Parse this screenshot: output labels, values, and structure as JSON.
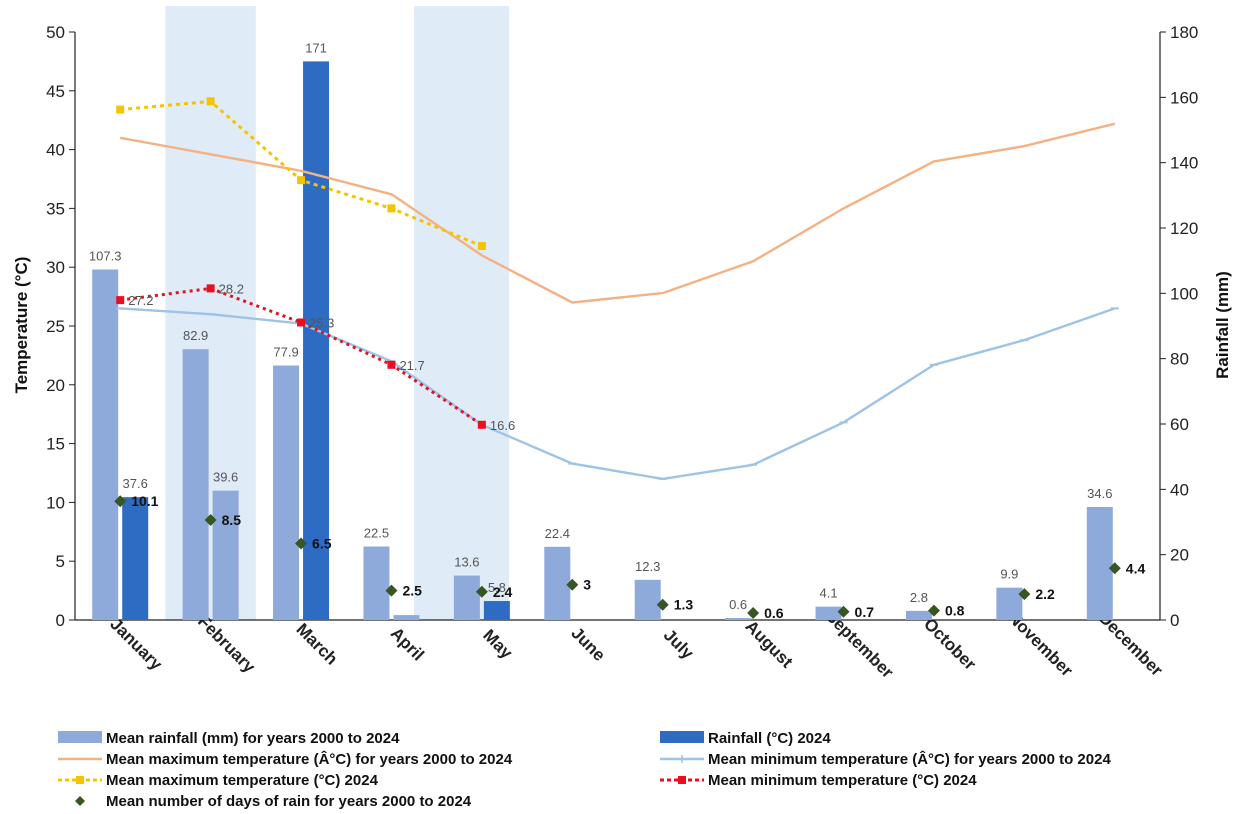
{
  "chart_data": {
    "type": "bar",
    "categories": [
      "January",
      "February",
      "March",
      "April",
      "May",
      "June",
      "July",
      "August",
      "September",
      "October",
      "November",
      "December"
    ],
    "y_left": {
      "label": "Temperature (°C)",
      "range": [
        0,
        50
      ],
      "ticks": [
        0,
        5,
        10,
        15,
        20,
        25,
        30,
        35,
        40,
        45,
        50
      ]
    },
    "y_right": {
      "label": "Rainfall (mm)",
      "range": [
        0,
        180
      ],
      "ticks": [
        0,
        20,
        40,
        60,
        80,
        100,
        120,
        140,
        160,
        180
      ]
    },
    "shaded_months": [
      "February",
      "April-May"
    ],
    "series": [
      {
        "name": "Mean rainfall (mm) for years 2000 to 2024",
        "type": "bar",
        "axis": "right",
        "color": "#8eaadb",
        "values": [
          107.3,
          82.9,
          77.9,
          22.5,
          13.6,
          22.4,
          12.3,
          0.6,
          4.1,
          2.8,
          9.9,
          34.6
        ],
        "labels": [
          "107.3",
          "82.9",
          "77.9",
          "22.5",
          "13.6",
          "22.4",
          "12.3",
          "0.6",
          "4.1",
          "2.8",
          "9.9",
          "34.6"
        ]
      },
      {
        "name": "Rainfall (°C) 2024",
        "type": "bar",
        "axis": "right",
        "color": "#2e6cc4",
        "values": [
          37.6,
          39.6,
          171,
          1.5,
          5.8,
          null,
          null,
          null,
          null,
          null,
          null,
          null
        ],
        "labels": [
          "37.6",
          "39.6",
          "171",
          "",
          "5.8",
          "",
          "",
          "",
          "",
          "",
          "",
          ""
        ]
      },
      {
        "name": "Mean maximum temperature (Â°C) for years 2000 to 2024",
        "type": "line",
        "axis": "left",
        "color": "#f4b183",
        "values": [
          41.0,
          39.6,
          38.2,
          36.2,
          31.0,
          27.0,
          27.8,
          30.5,
          35.0,
          39.0,
          40.3,
          42.2
        ]
      },
      {
        "name": "Mean minimum temperature (Â°C) for years 2000 to 2024",
        "type": "line",
        "axis": "left",
        "color": "#9dc3e6",
        "values": [
          26.5,
          26.0,
          25.2,
          22.0,
          16.6,
          13.3,
          12.0,
          13.2,
          16.8,
          21.7,
          23.8,
          26.5
        ]
      },
      {
        "name": "Mean maximum temperature (°C) 2024",
        "type": "line",
        "axis": "left",
        "color": "#f5c400",
        "dashed": true,
        "values": [
          43.4,
          44.1,
          37.4,
          35.0,
          31.8,
          null,
          null,
          null,
          null,
          null,
          null,
          null
        ]
      },
      {
        "name": "Mean minimum temperature (°C) 2024",
        "type": "line",
        "axis": "left",
        "color": "#e8101e",
        "dashed": true,
        "values": [
          27.2,
          28.2,
          25.3,
          21.7,
          16.6,
          null,
          null,
          null,
          null,
          null,
          null,
          null
        ],
        "labels": [
          "27.2",
          "28.2",
          "25.3",
          "21.7",
          "16.6",
          "",
          "",
          "",
          "",
          "",
          "",
          ""
        ]
      },
      {
        "name": "Mean number of days of rain for years 2000 to 2024",
        "type": "scatter",
        "axis": "left",
        "color": "#375623",
        "values": [
          10.1,
          8.5,
          6.5,
          2.5,
          2.4,
          3,
          1.3,
          0.6,
          0.7,
          0.8,
          2.2,
          4.4
        ],
        "labels": [
          "10.1",
          "8.5",
          "6.5",
          "2.5",
          "2.4",
          "3",
          "1.3",
          "0.6",
          "0.7",
          "0.8",
          "2.2",
          "4.4"
        ]
      }
    ],
    "legend_position": "bottom"
  }
}
